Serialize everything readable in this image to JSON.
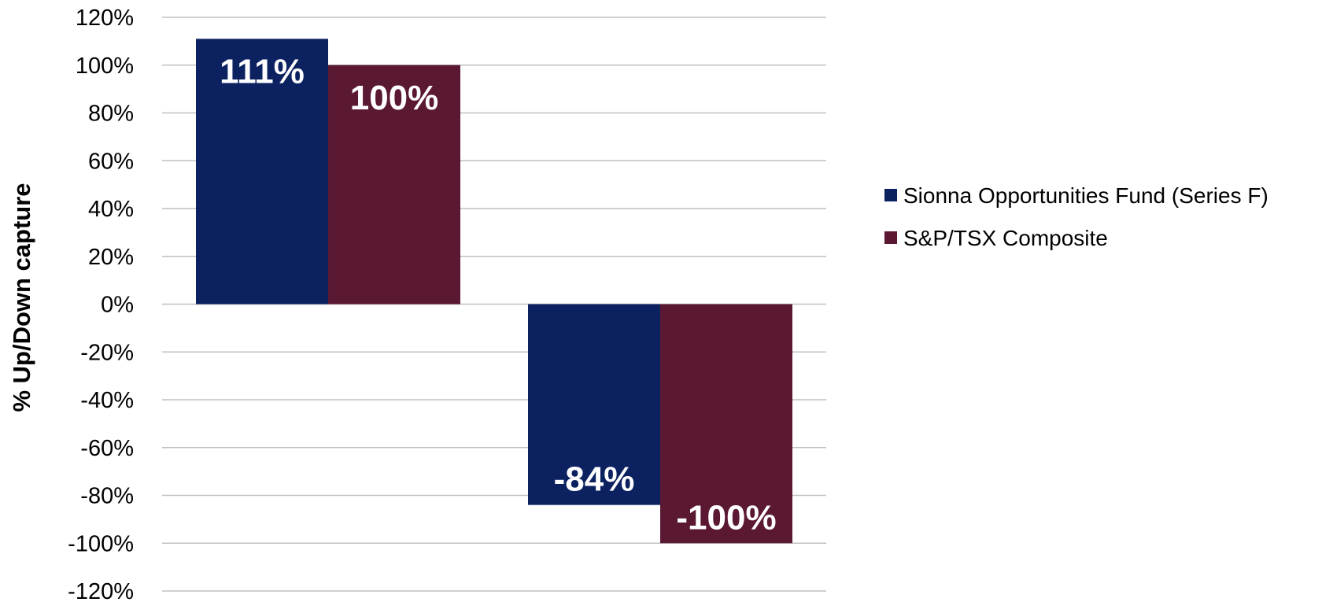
{
  "chart_data": {
    "type": "bar",
    "categories": [
      "",
      ""
    ],
    "series": [
      {
        "name": "Sionna Opportunities Fund (Series F)",
        "values": [
          111,
          -84
        ],
        "color": "#0b2160"
      },
      {
        "name": "S&P/TSX Composite",
        "values": [
          100,
          -100
        ],
        "color": "#5a1832"
      }
    ],
    "data_labels": [
      [
        "111%",
        "-84%"
      ],
      [
        "100%",
        "-100%"
      ]
    ],
    "title": "",
    "xlabel": "",
    "ylabel": "% Up/Down capture",
    "ylim": [
      -120,
      120
    ],
    "yticks": [
      120,
      100,
      80,
      60,
      40,
      20,
      0,
      -20,
      -40,
      -60,
      -80,
      -100,
      -120
    ],
    "ytick_labels": [
      "120%",
      "100%",
      "80%",
      "60%",
      "40%",
      "20%",
      "0%",
      "-20%",
      "-40%",
      "-60%",
      "-80%",
      "-100%",
      "-120%"
    ],
    "grid": true,
    "legend_position": "right",
    "gridline_color": "#c0c0c0"
  }
}
